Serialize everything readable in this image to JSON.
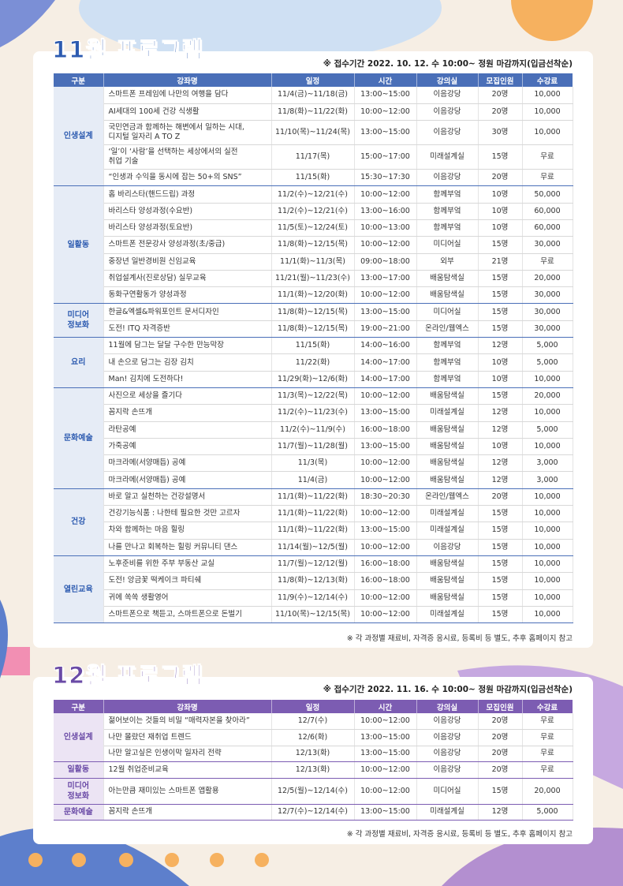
{
  "sections": [
    {
      "title": "11월 프로그램",
      "notice": "※ 접수기간 2022. 10. 12. 수 10:00~ 정원 마감까지(입금선착순)",
      "headers": [
        "구분",
        "강좌명",
        "일정",
        "시간",
        "강의실",
        "모집인원",
        "수강료"
      ],
      "groups": [
        {
          "name": "인생설계",
          "rows": [
            [
              "스마트폰 프레임에 나만의 여행을 담다",
              "11/4(금)~11/18(금)",
              "13:00~15:00",
              "이음강당",
              "20명",
              "10,000"
            ],
            [
              "AI세대의 100세 건강 식생활",
              "11/8(화)~11/22(화)",
              "10:00~12:00",
              "이음강당",
              "20명",
              "10,000"
            ],
            [
              "국민연금과 함께하는 해변에서 일하는 시대,\n디지털 일자리 A TO Z",
              "11/10(목)~11/24(목)",
              "13:00~15:00",
              "이음강당",
              "30명",
              "10,000"
            ],
            [
              "‘일’이 ‘사람’을 선택하는 세상에서의 실전\n취업 기술",
              "11/17(목)",
              "15:00~17:00",
              "미래설계실",
              "15명",
              "무료"
            ],
            [
              "“인생과 수익을 동시에 잡는 50+의 SNS”",
              "11/15(화)",
              "15:30~17:30",
              "이음강당",
              "20명",
              "무료"
            ]
          ]
        },
        {
          "name": "일활동",
          "rows": [
            [
              "홈 바리스타(핸드드립) 과정",
              "11/2(수)~12/21(수)",
              "10:00~12:00",
              "함께부엌",
              "10명",
              "50,000"
            ],
            [
              "바리스타 양성과정(수요반)",
              "11/2(수)~12/21(수)",
              "13:00~16:00",
              "함께부엌",
              "10명",
              "60,000"
            ],
            [
              "바리스타 양성과정(토요반)",
              "11/5(토)~12/24(토)",
              "10:00~13:00",
              "함께부엌",
              "10명",
              "60,000"
            ],
            [
              "스마트폰 전문강사 양성과정(초/중급)",
              "11/8(화)~12/15(목)",
              "10:00~12:00",
              "미디어실",
              "15명",
              "30,000"
            ],
            [
              "중장년 일반경비원 신임교육",
              "11/1(화)~11/3(목)",
              "09:00~18:00",
              "외부",
              "21명",
              "무료"
            ],
            [
              "취업설계사(진로상담) 실무교육",
              "11/21(월)~11/23(수)",
              "13:00~17:00",
              "배움탐색실",
              "15명",
              "20,000"
            ],
            [
              "동화구연활동가 양성과정",
              "11/1(화)~12/20(화)",
              "10:00~12:00",
              "배움탐색실",
              "15명",
              "30,000"
            ]
          ]
        },
        {
          "name": "미디어\n정보화",
          "rows": [
            [
              "한글&엑셀&파워포인트 문서디자인",
              "11/8(화)~12/15(목)",
              "13:00~15:00",
              "미디어실",
              "15명",
              "30,000"
            ],
            [
              "도전! ITQ 자격증반",
              "11/8(화)~12/15(목)",
              "19:00~21:00",
              "온라인/웹엑스",
              "15명",
              "30,000"
            ]
          ]
        },
        {
          "name": "요리",
          "rows": [
            [
              "11월에 담그는 달달 구수한 만능막장",
              "11/15(화)",
              "14:00~16:00",
              "함께부엌",
              "12명",
              "5,000"
            ],
            [
              "내 손으로 담그는 김장 김치",
              "11/22(화)",
              "14:00~17:00",
              "함께부엌",
              "10명",
              "5,000"
            ],
            [
              "Man! 김치에 도전하다!",
              "11/29(화)~12/6(화)",
              "14:00~17:00",
              "함께부엌",
              "10명",
              "10,000"
            ]
          ]
        },
        {
          "name": "문화예술",
          "rows": [
            [
              "사진으로 세상을 즐기다",
              "11/3(목)~12/22(목)",
              "10:00~12:00",
              "배움탐색실",
              "15명",
              "20,000"
            ],
            [
              "꼼지락 손뜨개",
              "11/2(수)~11/23(수)",
              "13:00~15:00",
              "미래설계실",
              "12명",
              "10,000"
            ],
            [
              "라탄공예",
              "11/2(수)~11/9(수)",
              "16:00~18:00",
              "배움탐색실",
              "12명",
              "5,000"
            ],
            [
              "가죽공예",
              "11/7(월)~11/28(월)",
              "13:00~15:00",
              "배움탐색실",
              "10명",
              "10,000"
            ],
            [
              "마크라메(서양매듭) 공예",
              "11/3(목)",
              "10:00~12:00",
              "배움탐색실",
              "12명",
              "3,000"
            ],
            [
              "마크라메(서양매듭) 공예",
              "11/4(금)",
              "10:00~12:00",
              "배움탐색실",
              "12명",
              "3,000"
            ]
          ]
        },
        {
          "name": "건강",
          "rows": [
            [
              "바로 알고 실천하는 건강설명서",
              "11/1(화)~11/22(화)",
              "18:30~20:30",
              "온라인/웹엑스",
              "20명",
              "10,000"
            ],
            [
              "건강기능식품 : 나한테 필요한 것만 고르자",
              "11/1(화)~11/22(화)",
              "10:00~12:00",
              "미래설계실",
              "15명",
              "10,000"
            ],
            [
              "차와 함께하는 마음 힐링",
              "11/1(화)~11/22(화)",
              "13:00~15:00",
              "미래설계실",
              "15명",
              "10,000"
            ],
            [
              "나를 만나고 회복하는 힐링 커뮤니티 댄스",
              "11/14(월)~12/5(월)",
              "10:00~12:00",
              "이음강당",
              "15명",
              "10,000"
            ]
          ]
        },
        {
          "name": "열린교육",
          "rows": [
            [
              "노후준비를 위한 주부 부동산 교실",
              "11/7(월)~12/12(월)",
              "16:00~18:00",
              "배움탐색실",
              "15명",
              "10,000"
            ],
            [
              "도전! 앙금꽃 떡케이크 파티쉐",
              "11/8(화)~12/13(화)",
              "16:00~18:00",
              "배움탐색실",
              "15명",
              "10,000"
            ],
            [
              "귀에 쏙쏙 생활영어",
              "11/9(수)~12/14(수)",
              "10:00~12:00",
              "배움탐색실",
              "15명",
              "10,000"
            ],
            [
              "스마트폰으로 책듣고, 스마트폰으로 돈벌기",
              "11/10(목)~12/15(목)",
              "10:00~12:00",
              "미래설계실",
              "15명",
              "10,000"
            ]
          ]
        }
      ],
      "footnote": "※ 각 과정별 재료비, 자격증 응시료, 등록비 등 별도, 추후 홈페이지 참고"
    },
    {
      "title": "12월 프로그램",
      "notice": "※ 접수기간 2022. 11. 16. 수 10:00~ 정원 마감까지(입금선착순)",
      "headers": [
        "구분",
        "강좌명",
        "일정",
        "시간",
        "강의실",
        "모집인원",
        "수강료"
      ],
      "groups": [
        {
          "name": "인생설계",
          "rows": [
            [
              "젊어보이는 것들의 비밀 “매력자본을 찾아라”",
              "12/7(수)",
              "10:00~12:00",
              "이음강당",
              "20명",
              "무료"
            ],
            [
              "나만 몰랐던 재취업 트렌드",
              "12/6(화)",
              "13:00~15:00",
              "이음강당",
              "20명",
              "무료"
            ],
            [
              "나만 알고싶은 인생이막 일자리 전략",
              "12/13(화)",
              "13:00~15:00",
              "이음강당",
              "20명",
              "무료"
            ]
          ]
        },
        {
          "name": "일활동",
          "rows": [
            [
              "12월 취업준비교육",
              "12/13(화)",
              "10:00~12:00",
              "이음강당",
              "20명",
              "무료"
            ]
          ]
        },
        {
          "name": "미디어\n정보화",
          "rows": [
            [
              "아는만큼 재미있는 스마트폰 앱활용",
              "12/5(월)~12/14(수)",
              "10:00~12:00",
              "미디어실",
              "15명",
              "20,000"
            ]
          ]
        },
        {
          "name": "문화예술",
          "rows": [
            [
              "꼼지락 손뜨개",
              "12/7(수)~12/14(수)",
              "13:00~15:00",
              "미래설계실",
              "12명",
              "5,000"
            ]
          ]
        }
      ],
      "footnote": "※ 각 과정별 재료비, 자격증 응시료, 등록비 등 별도, 추후 홈페이지 참고"
    }
  ]
}
